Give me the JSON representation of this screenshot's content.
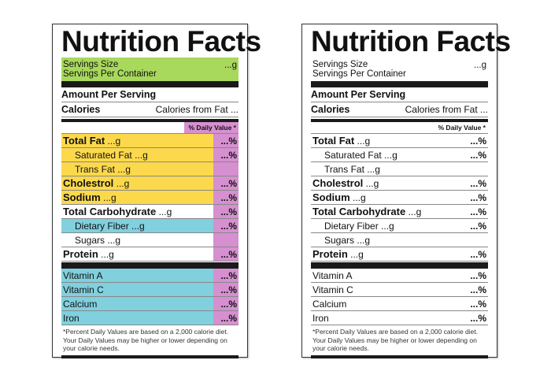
{
  "colors": {
    "green": "#a8d85c",
    "yellow": "#fcd94c",
    "pink": "#d690d0",
    "cyan": "#80d0de"
  },
  "labels": [
    {
      "colored": true
    },
    {
      "colored": false
    }
  ],
  "content": {
    "title": "Nutrition Facts",
    "servings_size": "Servings Size",
    "servings_size_value": "...g",
    "servings_per_container": "Servings Per Container",
    "amount_per_serving": "Amount Per Serving",
    "calories": "Calories",
    "calories_from_fat": "Calories from Fat ...",
    "daily_value": "% Daily Value *",
    "nutrients": [
      {
        "name": "Total Fat",
        "amount": "...g",
        "pct": "...%",
        "bold": true,
        "indent": false,
        "color": "yellow"
      },
      {
        "name": "Saturated Fat",
        "amount": "...g",
        "pct": "...%",
        "bold": false,
        "indent": true,
        "color": "yellow"
      },
      {
        "name": "Trans Fat",
        "amount": "...g",
        "pct": "",
        "bold": false,
        "indent": true,
        "color": "yellow"
      },
      {
        "name": "Cholestrol",
        "amount": "...g",
        "pct": "...%",
        "bold": true,
        "indent": false,
        "color": "yellow"
      },
      {
        "name": "Sodium",
        "amount": "...g",
        "pct": "...%",
        "bold": true,
        "indent": false,
        "color": "yellow"
      },
      {
        "name": "Total Carbohydrate",
        "amount": "...g",
        "pct": "...%",
        "bold": true,
        "indent": false,
        "color": ""
      },
      {
        "name": "Dietary Fiber",
        "amount": "...g",
        "pct": "...%",
        "bold": false,
        "indent": true,
        "color": "cyan"
      },
      {
        "name": "Sugars",
        "amount": "...g",
        "pct": "",
        "bold": false,
        "indent": true,
        "color": ""
      },
      {
        "name": "Protein",
        "amount": "...g",
        "pct": "...%",
        "bold": true,
        "indent": false,
        "color": ""
      }
    ],
    "vitamins": [
      {
        "name": "Vitamin A",
        "pct": "...%"
      },
      {
        "name": "Vitamin C",
        "pct": "...%"
      },
      {
        "name": "Calcium",
        "pct": "...%"
      },
      {
        "name": "Iron",
        "pct": "...%"
      }
    ],
    "footnote": "*Percent Daily Values are based on a 2,000 calorie diet. Your Daily Values may be higher or lower depending on your calorie needs."
  }
}
